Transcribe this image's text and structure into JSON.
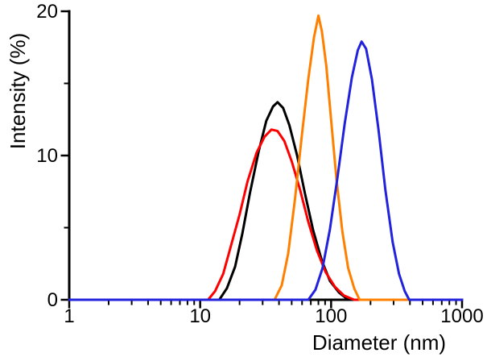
{
  "figure": {
    "background": "#ffffff",
    "axis_color": "#000000",
    "tick_label_color": "#000000"
  },
  "chart_data": {
    "type": "line",
    "title": "",
    "xlabel": "Diameter (nm)",
    "ylabel": "Intensity (%)",
    "x_scale": "log",
    "xlim": [
      1,
      1000
    ],
    "ylim": [
      0,
      20
    ],
    "x_major_ticks": [
      1,
      10,
      100,
      1000
    ],
    "x_major_tick_labels": [
      "1",
      "10",
      "100",
      "1000"
    ],
    "x_minor_ticks": [
      2,
      3,
      4,
      5,
      6,
      7,
      8,
      9,
      20,
      30,
      40,
      50,
      60,
      70,
      80,
      90,
      200,
      300,
      400,
      500,
      600,
      700,
      800,
      900
    ],
    "y_major_ticks": [
      0,
      10,
      20
    ],
    "y_major_tick_labels": [
      "0",
      "10",
      "20"
    ],
    "y_minor_ticks": [
      5,
      15
    ],
    "grid": false,
    "legend": "none",
    "series": [
      {
        "name": "black-sample",
        "color": "#000000",
        "peak_diameter_nm": 39,
        "peak_intensity_pct": 13.7,
        "points": [
          [
            1,
            0
          ],
          [
            10,
            0
          ],
          [
            14,
            0
          ],
          [
            16,
            0.8
          ],
          [
            18.5,
            2.3
          ],
          [
            21,
            4.6
          ],
          [
            24,
            7.4
          ],
          [
            28,
            10.3
          ],
          [
            32,
            12.4
          ],
          [
            36,
            13.4
          ],
          [
            39,
            13.7
          ],
          [
            43,
            13.3
          ],
          [
            48,
            12.1
          ],
          [
            55,
            10.0
          ],
          [
            63,
            7.4
          ],
          [
            73,
            4.8
          ],
          [
            85,
            2.7
          ],
          [
            98,
            1.3
          ],
          [
            115,
            0.5
          ],
          [
            135,
            0
          ],
          [
            1000,
            0
          ]
        ]
      },
      {
        "name": "red-sample",
        "color": "#ff0000",
        "peak_diameter_nm": 37,
        "peak_intensity_pct": 11.8,
        "points": [
          [
            1,
            0
          ],
          [
            10,
            0
          ],
          [
            11.5,
            0
          ],
          [
            13,
            0.6
          ],
          [
            15,
            1.8
          ],
          [
            17,
            3.6
          ],
          [
            20,
            5.9
          ],
          [
            23,
            8.2
          ],
          [
            27,
            10.2
          ],
          [
            31,
            11.3
          ],
          [
            35,
            11.8
          ],
          [
            39,
            11.7
          ],
          [
            44,
            11.0
          ],
          [
            50,
            9.6
          ],
          [
            58,
            7.6
          ],
          [
            67,
            5.4
          ],
          [
            78,
            3.4
          ],
          [
            91,
            1.9
          ],
          [
            107,
            0.9
          ],
          [
            125,
            0.3
          ],
          [
            150,
            0
          ],
          [
            1000,
            0
          ]
        ]
      },
      {
        "name": "orange-sample",
        "color": "#ff8000",
        "peak_diameter_nm": 80,
        "peak_intensity_pct": 19.7,
        "points": [
          [
            1,
            0
          ],
          [
            30,
            0
          ],
          [
            37,
            0
          ],
          [
            42,
            1.0
          ],
          [
            47,
            3.2
          ],
          [
            53,
            7.0
          ],
          [
            60,
            11.5
          ],
          [
            67,
            15.3
          ],
          [
            74,
            18.2
          ],
          [
            80,
            19.7
          ],
          [
            85,
            18.6
          ],
          [
            92,
            16.2
          ],
          [
            100,
            12.5
          ],
          [
            110,
            8.3
          ],
          [
            122,
            4.7
          ],
          [
            135,
            2.2
          ],
          [
            150,
            0.8
          ],
          [
            165,
            0
          ],
          [
            1000,
            0
          ]
        ]
      },
      {
        "name": "blue-sample",
        "color": "#2222dd",
        "peak_diameter_nm": 171,
        "peak_intensity_pct": 17.9,
        "points": [
          [
            1,
            0
          ],
          [
            60,
            0
          ],
          [
            67,
            0
          ],
          [
            76,
            0.7
          ],
          [
            86,
            2.2
          ],
          [
            98,
            4.9
          ],
          [
            112,
            8.5
          ],
          [
            127,
            12.2
          ],
          [
            144,
            15.4
          ],
          [
            160,
            17.3
          ],
          [
            171,
            17.9
          ],
          [
            185,
            17.4
          ],
          [
            205,
            15.3
          ],
          [
            230,
            11.8
          ],
          [
            260,
            7.6
          ],
          [
            295,
            4.0
          ],
          [
            330,
            1.8
          ],
          [
            365,
            0.6
          ],
          [
            395,
            0
          ],
          [
            1000,
            0
          ]
        ]
      }
    ]
  }
}
